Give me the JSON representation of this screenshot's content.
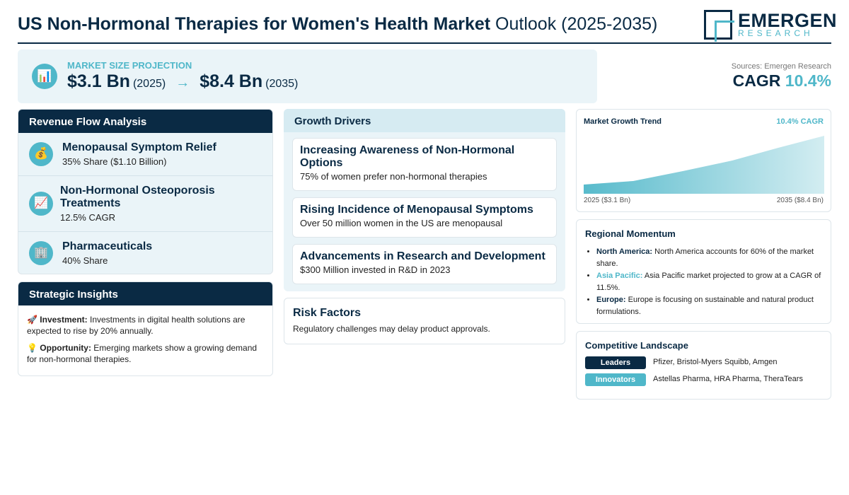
{
  "header": {
    "title_bold": "US Non-Hormonal Therapies for Women's Health Market",
    "title_light": "Outlook (2025-2035)",
    "logo_main": "EMERGEN",
    "logo_sub": "RESEARCH"
  },
  "market_size": {
    "icon": "bar-chart-icon",
    "label": "MARKET SIZE PROJECTION",
    "start_value": "$3.1 Bn",
    "start_year": "(2025)",
    "arrow": "→",
    "end_value": "$8.4 Bn",
    "end_year": "(2035)"
  },
  "sources": "Sources: Emergen Research",
  "cagr": {
    "label": "CAGR",
    "value": "10.4%"
  },
  "revenue_flow": {
    "title": "Revenue Flow Analysis",
    "items": [
      {
        "icon": "money-bag-icon",
        "name": "Menopausal Symptom Relief",
        "sub": "35% Share ($1.10 Billion)"
      },
      {
        "icon": "trend-chart-icon",
        "name": "Non-Hormonal Osteoporosis Treatments",
        "sub": "12.5% CAGR"
      },
      {
        "icon": "building-icon",
        "name": "Pharmaceuticals",
        "sub": "40% Share"
      }
    ]
  },
  "strategic": {
    "title": "Strategic Insights",
    "items": [
      {
        "icon": "rocket-icon",
        "label": "Investment:",
        "text": "Investments in digital health solutions are expected to rise by 20% annually."
      },
      {
        "icon": "lightbulb-icon",
        "label": "Opportunity:",
        "text": "Emerging markets show a growing demand for non-hormonal therapies."
      }
    ]
  },
  "growth_drivers": {
    "title": "Growth Drivers",
    "items": [
      {
        "title": "Increasing Awareness of Non-Hormonal Options",
        "desc": "75% of women prefer non-hormonal therapies"
      },
      {
        "title": "Rising Incidence of Menopausal Symptoms",
        "desc": "Over 50 million women in the US are menopausal"
      },
      {
        "title": "Advancements in Research and Development",
        "desc": "$300 Million invested in R&D in 2023"
      }
    ]
  },
  "risk": {
    "title": "Risk Factors",
    "desc": "Regulatory challenges may delay product approvals."
  },
  "trend": {
    "title": "Market Growth Trend",
    "cagr": "10.4% CAGR",
    "start_label": "2025 ($3.1 Bn)",
    "end_label": "2035 ($8.4 Bn)"
  },
  "regional": {
    "title": "Regional Momentum",
    "items": [
      {
        "label": "North America:",
        "text": "North America accounts for 60% of the market share."
      },
      {
        "label": "Asia Pacific:",
        "text": "Asia Pacific market projected to grow at a CAGR of 11.5%."
      },
      {
        "label": "Europe:",
        "text": "Europe is focusing on sustainable and natural product formulations."
      }
    ]
  },
  "competitive": {
    "title": "Competitive Landscape",
    "rows": [
      {
        "tag": "Leaders",
        "names": "Pfizer, Bristol-Myers Squibb, Amgen"
      },
      {
        "tag": "Innovators",
        "names": "Astellas Pharma, HRA Pharma, TheraTears"
      }
    ]
  },
  "colors": {
    "navy": "#0a2a44",
    "teal": "#4fb7c9",
    "light_bg": "#eaf4f8"
  }
}
